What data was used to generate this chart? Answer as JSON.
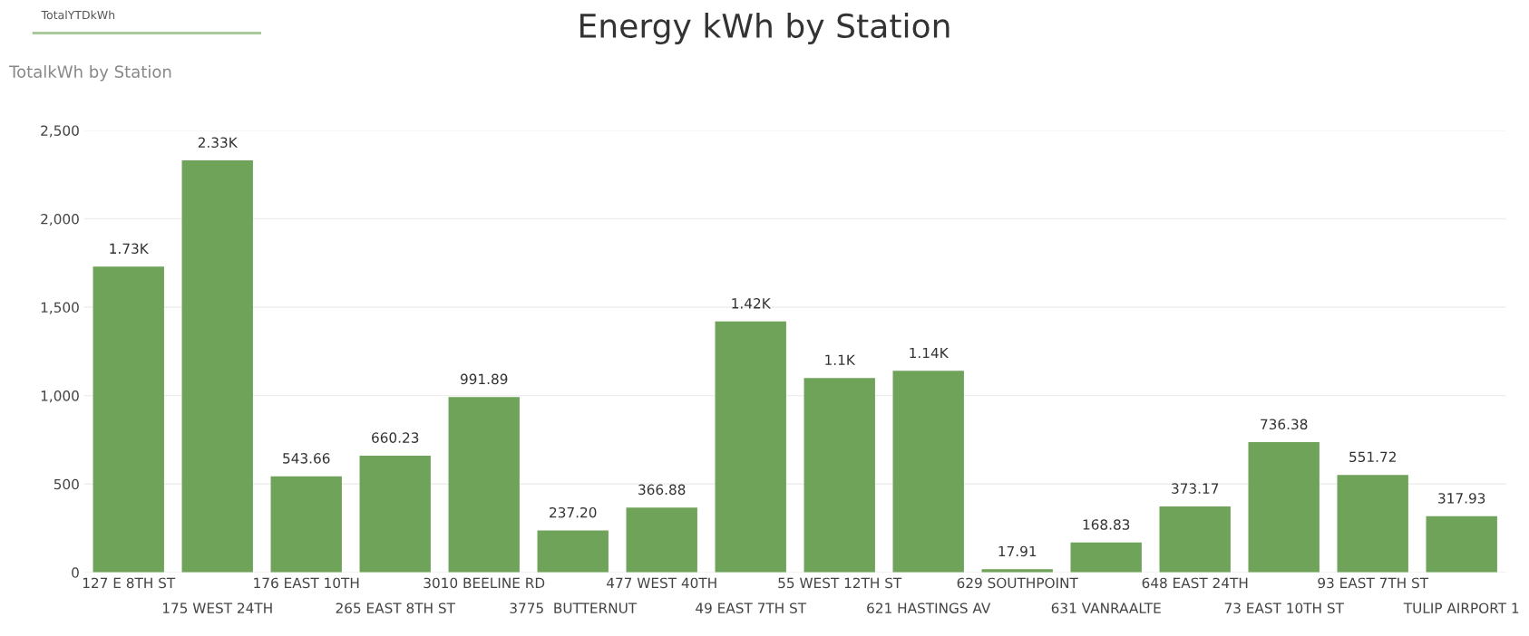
{
  "chart_data": {
    "type": "bar",
    "title": "Energy kWh by Station",
    "subtitle": "TotalkWh by Station",
    "annotations": [
      "TotalYTDkWh"
    ],
    "categories": [
      "127 E 8TH ST",
      "175 WEST 24TH",
      "176 EAST 10TH",
      "265 EAST 8TH ST",
      "3010 BEELINE RD",
      "3775  BUTTERNUT",
      "477 WEST 40TH",
      "49 EAST 7TH ST",
      "55 WEST 12TH ST",
      "621 HASTINGS AV",
      "629 SOUTHPOINT",
      "631 VANRAALTE",
      "648 EAST 24TH",
      "73 EAST 10TH ST",
      "93 EAST 7TH ST",
      "TULIP AIRPORT 1"
    ],
    "values": [
      1730,
      2330,
      543.66,
      660.23,
      991.89,
      237.2,
      366.88,
      1420,
      1100,
      1140,
      17.91,
      168.83,
      373.17,
      736.38,
      551.72,
      317.93
    ],
    "value_labels": [
      "1.73K",
      "2.33K",
      "543.66",
      "660.23",
      "991.89",
      "237.20",
      "366.88",
      "1.42K",
      "1.1K",
      "1.14K",
      "17.91",
      "168.83",
      "373.17",
      "736.38",
      "551.72",
      "317.93"
    ],
    "color": "#70a35a",
    "ylim": [
      0,
      2500
    ],
    "yticks": [
      {
        "value": 0,
        "label": "0"
      },
      {
        "value": 500,
        "label": "500"
      },
      {
        "value": 1000,
        "label": "1,000"
      },
      {
        "value": 1500,
        "label": "1,500"
      },
      {
        "value": 2000,
        "label": "2,000"
      },
      {
        "value": 2500,
        "label": "2,500"
      }
    ],
    "grid": "y",
    "legend": false
  }
}
